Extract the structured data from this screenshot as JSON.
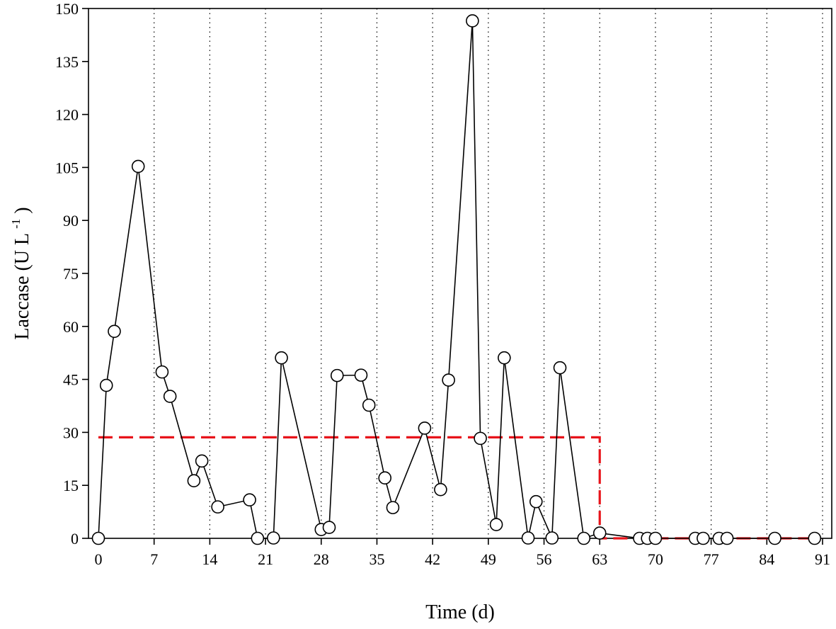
{
  "chart_data": {
    "type": "line",
    "xlabel": "Time (d)",
    "ylabel": {
      "base": "Laccase (U L",
      "superscript": "-1",
      "closing": ")"
    },
    "xlim": [
      0,
      91
    ],
    "ylim": [
      0,
      150
    ],
    "xticks": [
      0,
      7,
      14,
      21,
      28,
      35,
      42,
      49,
      56,
      63,
      70,
      77,
      84,
      91
    ],
    "yticks": [
      0,
      15,
      30,
      45,
      60,
      75,
      90,
      105,
      120,
      135,
      150
    ],
    "grid": "vertical dotted lines at x ticks",
    "series": [
      {
        "style": "black line with open circle markers",
        "color": "#000000",
        "points": [
          [
            0,
            0
          ],
          [
            1,
            43.3
          ],
          [
            2,
            58.6
          ],
          [
            5,
            105.3
          ],
          [
            8,
            47.1
          ],
          [
            9,
            40.2
          ],
          [
            12,
            16.3
          ],
          [
            13,
            21.9
          ],
          [
            15,
            8.9
          ],
          [
            19,
            10.9
          ],
          [
            20,
            0
          ],
          [
            22,
            0.1
          ],
          [
            23,
            51.1
          ],
          [
            28,
            2.5
          ],
          [
            29,
            3.1
          ],
          [
            30,
            46.1
          ],
          [
            33,
            46.2
          ],
          [
            34,
            37.7
          ],
          [
            36,
            17.1
          ],
          [
            37,
            8.7
          ],
          [
            41,
            31.2
          ],
          [
            43,
            13.8
          ],
          [
            44,
            44.8
          ],
          [
            47,
            146.5
          ],
          [
            48,
            28.3
          ],
          [
            50,
            3.9
          ],
          [
            51,
            51.1
          ],
          [
            54,
            0.1
          ],
          [
            55,
            10.4
          ],
          [
            57,
            0.1
          ],
          [
            58,
            48.3
          ],
          [
            61,
            0
          ],
          [
            63,
            1.5
          ],
          [
            68,
            0
          ],
          [
            69,
            0
          ],
          [
            70,
            0
          ],
          [
            75,
            0
          ],
          [
            76,
            0
          ],
          [
            78,
            0
          ],
          [
            79,
            0
          ],
          [
            85,
            0
          ],
          [
            90,
            0
          ]
        ]
      },
      {
        "style": "red dashed step line",
        "color": "#e8141b",
        "points": [
          [
            0,
            28.6
          ],
          [
            63,
            28.6
          ],
          [
            63,
            0
          ],
          [
            90,
            0
          ]
        ]
      }
    ]
  }
}
